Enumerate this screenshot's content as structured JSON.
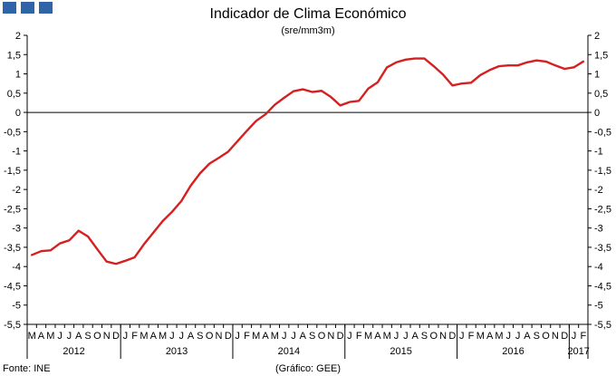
{
  "header": {
    "title": "Indicador de Clima Económico",
    "subtitle": "(sre/mm3m)"
  },
  "footer": {
    "source": "Fonte: INE",
    "credit": "(Gráfico: GEE)"
  },
  "colors": {
    "line": "#d42020",
    "logo": "#2f65a8",
    "axis": "#000000"
  },
  "chart_data": {
    "type": "line",
    "title": "Indicador de Clima Económico",
    "subtitle": "(sre/mm3m)",
    "xlabel": "",
    "ylabel": "",
    "ylim": [
      -5.5,
      2
    ],
    "y_ticks": [
      "-5,5",
      "-5",
      "-4,5",
      "-4",
      "-3,5",
      "-3",
      "-2,5",
      "-2",
      "-1,5",
      "-1",
      "-0,5",
      "0",
      "0,5",
      "1",
      "1,5",
      "2"
    ],
    "month_labels": [
      "M",
      "A",
      "M",
      "J",
      "J",
      "A",
      "S",
      "O",
      "N",
      "D",
      "J",
      "F",
      "M",
      "A",
      "M",
      "J",
      "J",
      "A",
      "S",
      "O",
      "N",
      "D",
      "J",
      "F",
      "M",
      "A",
      "M",
      "J",
      "J",
      "A",
      "S",
      "O",
      "N",
      "D",
      "J",
      "F",
      "M",
      "A",
      "M",
      "J",
      "J",
      "A",
      "S",
      "O",
      "N",
      "D",
      "J",
      "F",
      "M",
      "A",
      "M",
      "J",
      "J",
      "A",
      "S",
      "O",
      "N",
      "D",
      "J",
      "F"
    ],
    "years": [
      {
        "label": "2012",
        "start": 0,
        "count": 10
      },
      {
        "label": "2013",
        "start": 10,
        "count": 12
      },
      {
        "label": "2014",
        "start": 22,
        "count": 12
      },
      {
        "label": "2015",
        "start": 34,
        "count": 12
      },
      {
        "label": "2016",
        "start": 46,
        "count": 12
      },
      {
        "label": "2017",
        "start": 58,
        "count": 2
      }
    ],
    "series": [
      {
        "name": "Indicador de Clima Económico",
        "start": "2012-03",
        "values": [
          -3.7,
          -3.6,
          -3.58,
          -3.4,
          -3.32,
          -3.07,
          -3.22,
          -3.55,
          -3.87,
          -3.93,
          -3.85,
          -3.76,
          -3.42,
          -3.12,
          -2.82,
          -2.58,
          -2.3,
          -1.9,
          -1.58,
          -1.33,
          -1.18,
          -1.02,
          -0.75,
          -0.48,
          -0.22,
          -0.05,
          0.2,
          0.38,
          0.55,
          0.6,
          0.53,
          0.56,
          0.4,
          0.18,
          0.27,
          0.3,
          0.62,
          0.78,
          1.17,
          1.3,
          1.37,
          1.4,
          1.4,
          1.2,
          0.98,
          0.7,
          0.75,
          0.77,
          0.97,
          1.1,
          1.2,
          1.22,
          1.22,
          1.3,
          1.35,
          1.32,
          1.22,
          1.13,
          1.17,
          1.32
        ]
      }
    ]
  }
}
